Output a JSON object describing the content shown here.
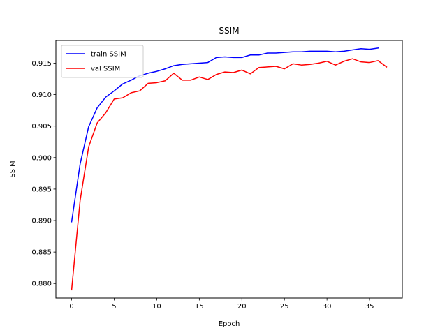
{
  "chart_data": {
    "type": "line",
    "title": "SSIM",
    "xlabel": "Epoch",
    "ylabel": "SSIM",
    "xlim": [
      -1.85,
      38.85
    ],
    "ylim": [
      0.8777,
      0.9186
    ],
    "xticks": [
      0,
      5,
      10,
      15,
      20,
      25,
      30,
      35
    ],
    "xtick_labels": [
      "0",
      "5",
      "10",
      "15",
      "20",
      "25",
      "30",
      "35"
    ],
    "yticks": [
      0.88,
      0.885,
      0.89,
      0.895,
      0.9,
      0.905,
      0.91,
      0.915
    ],
    "ytick_labels": [
      "0.880",
      "0.885",
      "0.890",
      "0.895",
      "0.900",
      "0.905",
      "0.910",
      "0.915"
    ],
    "grid": false,
    "legend_position": "top-left",
    "series": [
      {
        "name": "train SSIM",
        "color": "#0000ff",
        "x": [
          0,
          1,
          2,
          3,
          4,
          5,
          6,
          7,
          8,
          9,
          10,
          11,
          12,
          13,
          14,
          15,
          16,
          17,
          18,
          19,
          20,
          21,
          22,
          23,
          24,
          25,
          26,
          27,
          28,
          29,
          30,
          31,
          32,
          33,
          34,
          35,
          36
        ],
        "values": [
          0.8898,
          0.899,
          0.9049,
          0.9079,
          0.9096,
          0.9106,
          0.9117,
          0.9123,
          0.913,
          0.9134,
          0.9137,
          0.9141,
          0.9146,
          0.9148,
          0.9149,
          0.915,
          0.9151,
          0.9159,
          0.916,
          0.9159,
          0.9159,
          0.9163,
          0.9163,
          0.9166,
          0.9166,
          0.9167,
          0.9168,
          0.9168,
          0.9169,
          0.9169,
          0.9169,
          0.9168,
          0.9169,
          0.9171,
          0.9173,
          0.9172,
          0.9174
        ]
      },
      {
        "name": "val SSIM",
        "color": "#ff0000",
        "x": [
          0,
          1,
          2,
          3,
          4,
          5,
          6,
          7,
          8,
          9,
          10,
          11,
          12,
          13,
          14,
          15,
          16,
          17,
          18,
          19,
          20,
          21,
          22,
          23,
          24,
          25,
          26,
          27,
          28,
          29,
          30,
          31,
          32,
          33,
          34,
          35,
          36,
          37
        ],
        "values": [
          0.879,
          0.8932,
          0.9017,
          0.9055,
          0.9071,
          0.9093,
          0.9095,
          0.9103,
          0.9106,
          0.9118,
          0.9119,
          0.9122,
          0.9134,
          0.9123,
          0.9123,
          0.9128,
          0.9124,
          0.9132,
          0.9136,
          0.9135,
          0.9139,
          0.9133,
          0.9143,
          0.9144,
          0.9145,
          0.9141,
          0.9149,
          0.9147,
          0.9148,
          0.915,
          0.9153,
          0.9147,
          0.9153,
          0.9157,
          0.9152,
          0.9151,
          0.9154,
          0.9144
        ]
      }
    ]
  }
}
